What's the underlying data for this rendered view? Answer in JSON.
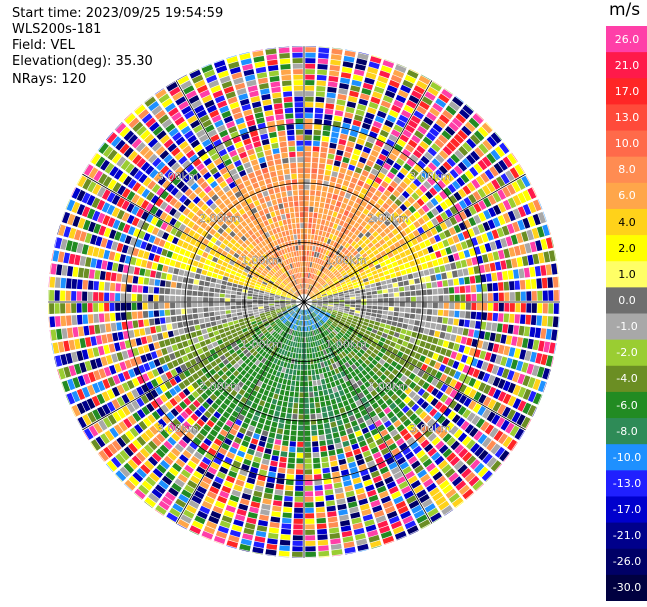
{
  "info": {
    "start_time": "Start time: 2023/09/25 19:54:59",
    "instrument": "WLS200s-181",
    "field": "Field: VEL",
    "elevation": "Elevation(deg): 35.30",
    "nrays": "NRays: 120"
  },
  "colorbar": {
    "unit": "m/s",
    "ticks": [
      "26.0",
      "21.0",
      "17.0",
      "13.0",
      "10.0",
      "8.0",
      "6.0",
      "4.0",
      "2.0",
      "1.0",
      "0.0",
      "-1.0",
      "-2.0",
      "-4.0",
      "-6.0",
      "-8.0",
      "-10.0",
      "-13.0",
      "-17.0",
      "-21.0",
      "-26.0",
      "-30.0"
    ],
    "colors": [
      "#ff3fa8",
      "#ff1a4a",
      "#ff2626",
      "#ff4a3a",
      "#ff6a4a",
      "#ff8c52",
      "#ffa64a",
      "#ffd21a",
      "#ffff00",
      "#ffff66",
      "#6e6e6e",
      "#a8a8a8",
      "#9acd32",
      "#6b8e23",
      "#228b22",
      "#2e8b57",
      "#1e90ff",
      "#2020ff",
      "#0000cd",
      "#00008b",
      "#000066",
      "#000040"
    ]
  },
  "chart_data": {
    "type": "heatmap",
    "projection": "polar (PPI scan)",
    "field": "VEL",
    "unit": "m/s",
    "nrays": 120,
    "range_rings_km": [
      1.0,
      2.0,
      3.0
    ],
    "ring_labels": [
      "1.00km",
      "2.00km",
      "3.00km"
    ],
    "spokes_deg": [
      0,
      30,
      60,
      90,
      120,
      150,
      180,
      210,
      240,
      270,
      300,
      330
    ],
    "colorbar_levels": [
      -30,
      -26,
      -21,
      -17,
      -13,
      -10,
      -8,
      -6,
      -4,
      -2,
      -1,
      0,
      1,
      2,
      4,
      6,
      8,
      10,
      13,
      17,
      21,
      26
    ],
    "signal_range_km": 3.0,
    "max_range_km": 4.3,
    "coherent_pattern": {
      "north_half_dominant_ms": [
        2,
        10
      ],
      "south_half_dominant_ms": [
        -8,
        -1
      ],
      "near_zero_zone": "east-west band"
    },
    "noise_beyond_km": 2.8
  }
}
